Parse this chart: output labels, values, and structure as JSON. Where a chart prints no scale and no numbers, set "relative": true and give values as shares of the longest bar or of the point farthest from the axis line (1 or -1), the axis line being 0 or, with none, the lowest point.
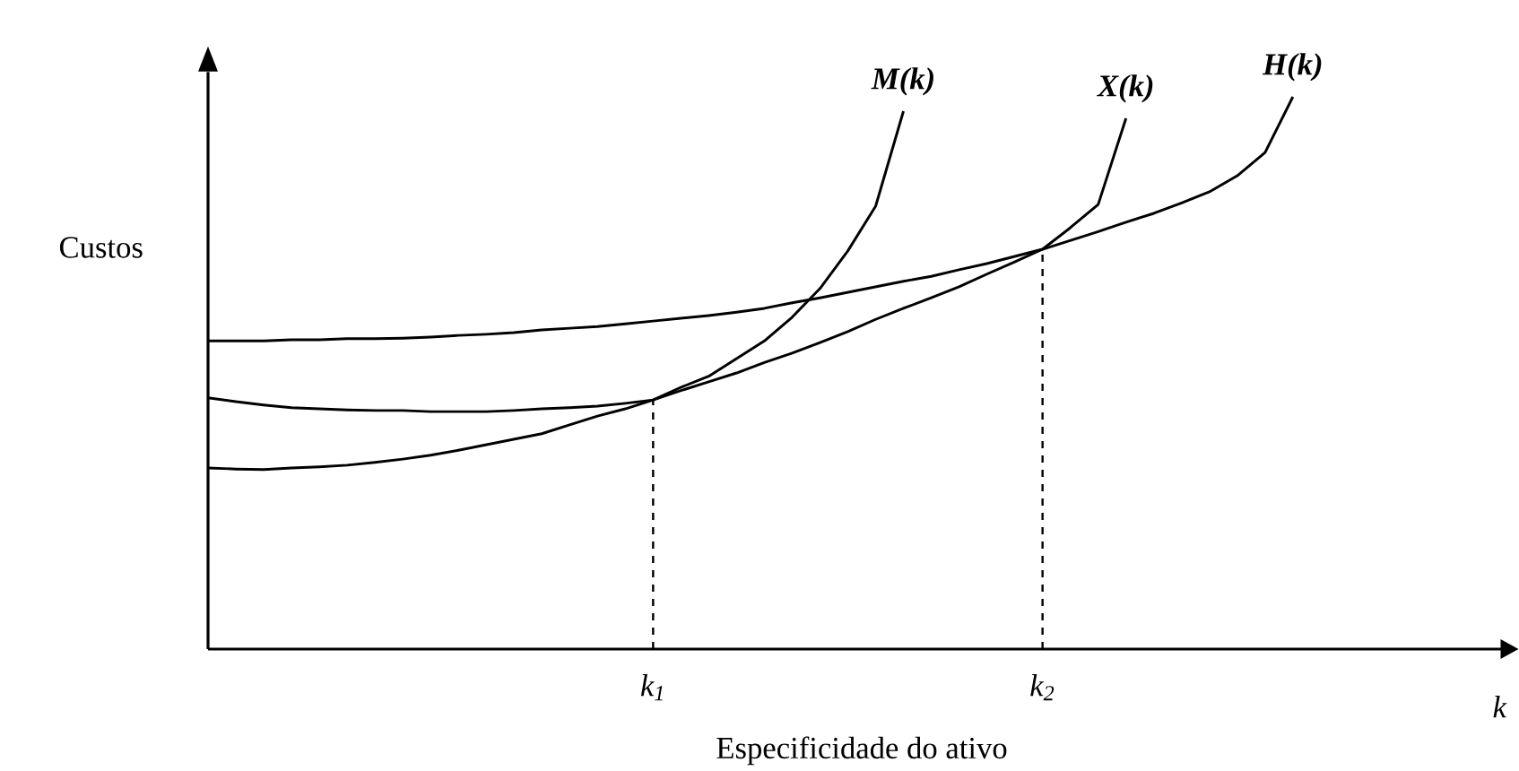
{
  "chart_data": {
    "type": "line",
    "relative": true,
    "ylabel": "Custos",
    "xlabel": "Especificidade do ativo",
    "annotations": [
      "k"
    ],
    "categories": [
      null,
      null,
      null,
      null,
      null,
      null,
      null,
      null,
      null,
      null,
      null,
      null,
      null,
      null,
      null,
      null,
      "k$_{1}$",
      null,
      null,
      null,
      null,
      null,
      null,
      null,
      null,
      null,
      null,
      null,
      null,
      null,
      "k$_{2}$",
      null,
      null,
      null,
      null,
      null,
      null,
      null,
      null,
      null,
      null,
      null,
      null,
      null,
      null,
      null,
      null,
      null
    ],
    "ref_lines": [
      {
        "axis": "x",
        "value": "k$_{1}$",
        "line_style": "dashed"
      },
      {
        "axis": "x",
        "value": "k$_{2}$",
        "line_style": "dashed"
      }
    ],
    "series": [
      {
        "name": "M(k)",
        "color": "#000000",
        "values": [
          0.455,
          0.448,
          0.442,
          0.437,
          0.435,
          0.433,
          0.432,
          0.432,
          0.43,
          0.43,
          0.43,
          0.432,
          0.435,
          0.437,
          0.44,
          0.445,
          0.451,
          0.474,
          0.494,
          0.526,
          0.558,
          0.601,
          0.653,
          0.721,
          0.802,
          0.974,
          null,
          null,
          null,
          null,
          null,
          null,
          null,
          null,
          null,
          null,
          null,
          null,
          null,
          null,
          null,
          null,
          null,
          null,
          null,
          null,
          null,
          null
        ]
      },
      {
        "name": "X(k)",
        "color": "#000000",
        "values": [
          0.328,
          0.326,
          0.325,
          0.328,
          0.33,
          0.333,
          0.338,
          0.344,
          0.351,
          0.36,
          0.37,
          0.38,
          0.39,
          0.406,
          0.422,
          0.435,
          0.451,
          0.468,
          0.484,
          0.5,
          0.519,
          0.536,
          0.555,
          0.575,
          0.597,
          0.617,
          0.636,
          0.656,
          0.679,
          0.701,
          0.724,
          0.763,
          0.805,
          0.961,
          null,
          null,
          null,
          null,
          null,
          null,
          null,
          null,
          null,
          null,
          null,
          null,
          null,
          null
        ]
      },
      {
        "name": "H(k)",
        "color": "#000000",
        "values": [
          0.558,
          0.558,
          0.558,
          0.56,
          0.56,
          0.562,
          0.562,
          0.563,
          0.565,
          0.568,
          0.57,
          0.573,
          0.578,
          0.581,
          0.584,
          0.589,
          0.594,
          0.599,
          0.604,
          0.61,
          0.617,
          0.627,
          0.636,
          0.646,
          0.656,
          0.666,
          0.675,
          0.687,
          0.698,
          0.711,
          0.724,
          0.74,
          0.756,
          0.773,
          0.789,
          0.808,
          0.828,
          0.857,
          0.899,
          1.0,
          null,
          null,
          null,
          null,
          null,
          null,
          null,
          null
        ]
      }
    ]
  }
}
